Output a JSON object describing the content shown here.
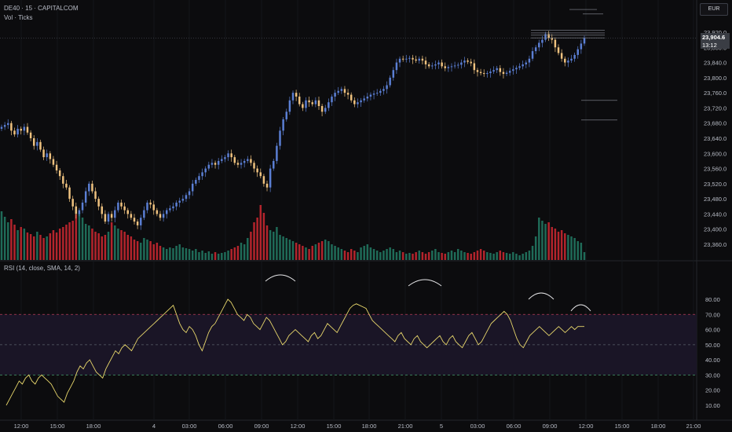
{
  "header": {
    "symbol_line": "DE40 · 15 · CAPITALCOM",
    "volume_label": "Vol · Ticks",
    "rsi_label": "RSI (14, close, SMA, 14, 2)",
    "currency": "EUR"
  },
  "last_price": {
    "value": "23,904.6",
    "countdown": "13:12"
  },
  "colors": {
    "background": "#0c0c0e",
    "bull_candle": "#5b7fd4",
    "bear_candle": "#efc27f",
    "volume_up": "#1f6b58",
    "volume_down": "#b3242c",
    "rsi_line": "#e9d86c",
    "rsi_band": "#1a1526",
    "rsi_upper": "#b73a56",
    "rsi_lower": "#3f8a62"
  },
  "chart_data": [
    {
      "type": "candlestick",
      "price_axis": {
        "min": 23340,
        "max": 23930,
        "ticks": [
          "23,920.0",
          "23,880.0",
          "23,840.0",
          "23,800.0",
          "23,760.0",
          "23,720.0",
          "23,680.0",
          "23,640.0",
          "23,600.0",
          "23,560.0",
          "23,520.0",
          "23,480.0",
          "23,440.0",
          "23,400.0",
          "23,360.0"
        ],
        "tick_values": [
          23920,
          23880,
          23840,
          23800,
          23760,
          23720,
          23680,
          23640,
          23600,
          23560,
          23520,
          23480,
          23440,
          23400,
          23360
        ]
      },
      "time_axis": {
        "labels": [
          "12:00",
          "15:00",
          "18:00",
          "4",
          "03:00",
          "06:00",
          "09:00",
          "12:00",
          "15:00",
          "18:00",
          "21:00",
          "5",
          "03:00",
          "06:00",
          "09:00",
          "12:00",
          "15:00",
          "18:00",
          "21:00"
        ],
        "positions": [
          27,
          73,
          119,
          196,
          241,
          287,
          333,
          379,
          425,
          470,
          516,
          562,
          608,
          654,
          700,
          746,
          792,
          838,
          883
        ]
      },
      "closes": [
        23670,
        23675,
        23680,
        23660,
        23650,
        23665,
        23660,
        23670,
        23655,
        23640,
        23620,
        23630,
        23610,
        23590,
        23600,
        23585,
        23570,
        23555,
        23540,
        23520,
        23510,
        23480,
        23460,
        23440,
        23450,
        23470,
        23500,
        23520,
        23500,
        23480,
        23460,
        23440,
        23420,
        23440,
        23430,
        23450,
        23470,
        23460,
        23450,
        23440,
        23430,
        23420,
        23410,
        23430,
        23450,
        23470,
        23465,
        23450,
        23440,
        23430,
        23440,
        23450,
        23455,
        23460,
        23470,
        23475,
        23480,
        23490,
        23500,
        23520,
        23530,
        23540,
        23550,
        23560,
        23570,
        23575,
        23570,
        23580,
        23585,
        23590,
        23600,
        23590,
        23575,
        23570,
        23575,
        23580,
        23585,
        23575,
        23560,
        23550,
        23540,
        23520,
        23510,
        23560,
        23580,
        23620,
        23660,
        23690,
        23710,
        23740,
        23760,
        23750,
        23730,
        23720,
        23740,
        23735,
        23730,
        23740,
        23725,
        23710,
        23720,
        23735,
        23750,
        23760,
        23765,
        23770,
        23760,
        23755,
        23740,
        23730,
        23735,
        23740,
        23745,
        23750,
        23755,
        23758,
        23760,
        23765,
        23770,
        23780,
        23800,
        23820,
        23840,
        23850,
        23848,
        23850,
        23852,
        23848,
        23845,
        23850,
        23845,
        23835,
        23830,
        23832,
        23835,
        23840,
        23830,
        23825,
        23828,
        23830,
        23832,
        23834,
        23840,
        23845,
        23842,
        23838,
        23820,
        23815,
        23812,
        23810,
        23812,
        23816,
        23820,
        23825,
        23815,
        23810,
        23813,
        23818,
        23822,
        23826,
        23830,
        23835,
        23840,
        23850,
        23870,
        23880,
        23892,
        23900,
        23915,
        23905,
        23900,
        23880,
        23865,
        23850,
        23840,
        23845,
        23850,
        23860,
        23875,
        23890,
        23904.6
      ],
      "volumes": [
        62,
        55,
        48,
        52,
        45,
        38,
        42,
        40,
        35,
        33,
        30,
        36,
        32,
        28,
        30,
        34,
        38,
        35,
        40,
        42,
        45,
        48,
        50,
        58,
        60,
        54,
        46,
        44,
        40,
        36,
        34,
        30,
        32,
        36,
        48,
        44,
        40,
        38,
        36,
        32,
        30,
        26,
        24,
        22,
        28,
        26,
        24,
        20,
        22,
        18,
        16,
        14,
        16,
        15,
        18,
        20,
        16,
        15,
        14,
        12,
        14,
        10,
        12,
        9,
        11,
        8,
        10,
        8,
        9,
        10,
        12,
        14,
        16,
        18,
        22,
        20,
        28,
        36,
        48,
        54,
        70,
        60,
        44,
        38,
        36,
        42,
        32,
        30,
        28,
        26,
        24,
        22,
        20,
        18,
        16,
        14,
        18,
        20,
        22,
        24,
        26,
        24,
        20,
        18,
        16,
        14,
        12,
        10,
        14,
        12,
        10,
        16,
        18,
        20,
        16,
        14,
        12,
        10,
        12,
        14,
        16,
        14,
        10,
        12,
        10,
        8,
        9,
        8,
        10,
        12,
        10,
        8,
        10,
        12,
        14,
        10,
        9,
        8,
        10,
        12,
        10,
        14,
        12,
        10,
        9,
        8,
        10,
        12,
        14,
        12,
        10,
        9,
        8,
        10,
        12,
        10,
        9,
        8,
        10,
        8,
        6,
        8,
        10,
        12,
        18,
        30,
        54,
        50,
        46,
        48,
        42,
        40,
        36,
        38,
        34,
        32,
        30,
        28,
        24,
        22,
        10
      ]
    },
    {
      "type": "line",
      "name": "",
      "ylim": [
        0,
        90
      ],
      "ticks": [
        "80.00",
        "70.00",
        "60.00",
        "50.00",
        "40.00",
        "30.00",
        "20.00",
        "10.00"
      ],
      "tick_values": [
        80,
        70,
        60,
        50,
        40,
        30,
        20,
        10
      ],
      "upper_band": 70,
      "middle": 50,
      "lower_band": 30,
      "values": [
        10,
        14,
        18,
        22,
        26,
        24,
        28,
        30,
        26,
        24,
        28,
        30,
        28,
        26,
        24,
        20,
        16,
        14,
        12,
        18,
        22,
        26,
        32,
        36,
        34,
        38,
        40,
        36,
        32,
        30,
        28,
        34,
        38,
        42,
        46,
        44,
        48,
        50,
        48,
        46,
        50,
        54,
        56,
        58,
        60,
        62,
        64,
        66,
        68,
        70,
        72,
        74,
        76,
        70,
        64,
        60,
        58,
        62,
        60,
        56,
        50,
        46,
        52,
        58,
        62,
        64,
        68,
        72,
        76,
        80,
        78,
        74,
        70,
        68,
        66,
        70,
        68,
        64,
        62,
        60,
        64,
        68,
        66,
        62,
        58,
        54,
        50,
        52,
        56,
        58,
        60,
        58,
        56,
        54,
        52,
        56,
        58,
        54,
        56,
        60,
        64,
        62,
        60,
        58,
        62,
        66,
        70,
        74,
        76,
        77,
        76,
        75,
        74,
        70,
        66,
        64,
        62,
        60,
        58,
        56,
        54,
        52,
        56,
        58,
        54,
        52,
        50,
        54,
        56,
        52,
        50,
        48,
        50,
        52,
        54,
        56,
        52,
        50,
        54,
        56,
        52,
        50,
        48,
        52,
        56,
        58,
        54,
        50,
        52,
        56,
        60,
        64,
        66,
        68,
        70,
        72,
        70,
        66,
        60,
        54,
        50,
        48,
        52,
        56,
        58,
        60,
        62,
        60,
        58,
        56,
        58,
        60,
        62,
        60,
        58,
        60,
        62,
        60,
        62,
        62,
        62
      ]
    }
  ]
}
